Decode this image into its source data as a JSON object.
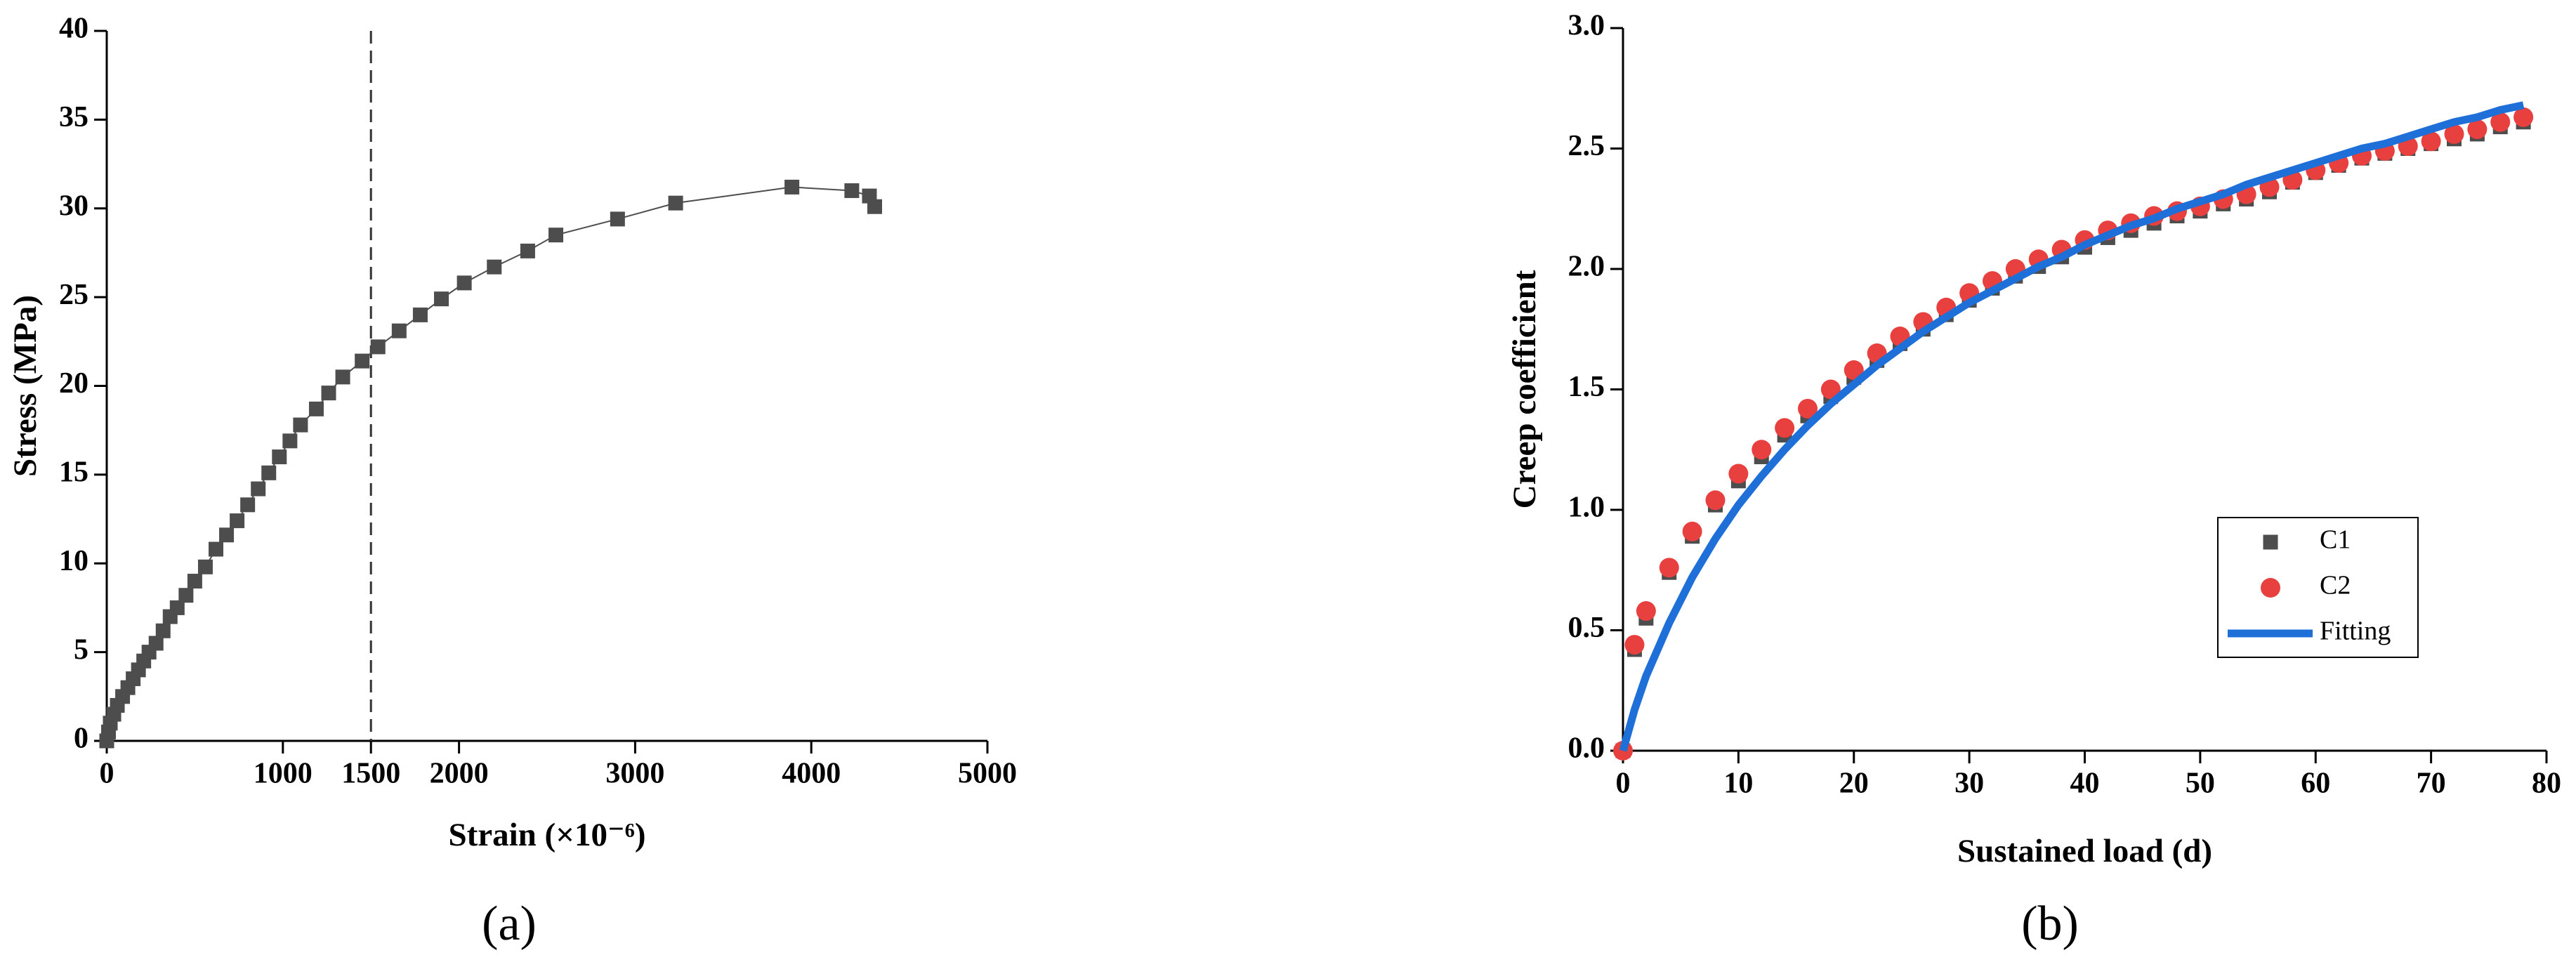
{
  "chart_data": [
    {
      "type": "line",
      "x": [
        0,
        10,
        20,
        40,
        60,
        90,
        120,
        150,
        180,
        210,
        240,
        280,
        320,
        360,
        400,
        450,
        500,
        560,
        620,
        680,
        740,
        800,
        860,
        920,
        980,
        1040,
        1100,
        1190,
        1260,
        1340,
        1450,
        1540,
        1660,
        1780,
        1900,
        2030,
        2200,
        2390,
        2550,
        2900,
        3230,
        3890,
        4230,
        4330,
        4360
      ],
      "series": [
        {
          "color": "#4d4d4d",
          "marker": "square",
          "values": [
            0,
            0.5,
            1,
            1.5,
            2,
            2.5,
            3,
            3.5,
            4,
            4.5,
            5,
            5.5,
            6.2,
            7,
            7.5,
            8.2,
            9,
            9.8,
            10.8,
            11.6,
            12.4,
            13.3,
            14.2,
            15.1,
            16,
            16.9,
            17.8,
            18.7,
            19.6,
            20.5,
            21.4,
            22.2,
            23.1,
            24,
            24.9,
            25.8,
            26.7,
            27.6,
            28.5,
            29.4,
            30.3,
            31.2,
            31,
            30.7,
            30.1
          ]
        }
      ],
      "xlim": [
        0,
        5000
      ],
      "ylim": [
        0,
        40
      ],
      "xticks": [
        0,
        1000,
        1500,
        2000,
        3000,
        4000,
        5000
      ],
      "yticks": [
        0,
        5,
        10,
        15,
        20,
        25,
        30,
        35,
        40
      ],
      "xlabel": "Strain (×10⁻⁶)",
      "ylabel": "Stress  (MPa)",
      "vline": 1500,
      "caption": "(a)"
    },
    {
      "type": "scatter",
      "x": [
        0,
        1,
        2,
        4,
        6,
        8,
        10,
        12,
        14,
        16,
        18,
        20,
        22,
        24,
        26,
        28,
        30,
        32,
        34,
        36,
        38,
        40,
        42,
        44,
        46,
        48,
        50,
        52,
        54,
        56,
        58,
        60,
        62,
        64,
        66,
        68,
        70,
        72,
        74,
        76,
        78
      ],
      "series": [
        {
          "name": "C1",
          "color": "#4d4d4d",
          "marker": "square",
          "values": [
            0,
            0.42,
            0.55,
            0.74,
            0.89,
            1.02,
            1.12,
            1.22,
            1.31,
            1.39,
            1.47,
            1.55,
            1.62,
            1.69,
            1.75,
            1.81,
            1.87,
            1.92,
            1.97,
            2.01,
            2.05,
            2.09,
            2.13,
            2.16,
            2.19,
            2.22,
            2.24,
            2.27,
            2.29,
            2.32,
            2.36,
            2.4,
            2.43,
            2.46,
            2.48,
            2.5,
            2.52,
            2.54,
            2.56,
            2.59,
            2.61
          ]
        },
        {
          "name": "C2",
          "color": "#e8403f",
          "marker": "circle",
          "values": [
            0,
            0.44,
            0.58,
            0.76,
            0.91,
            1.04,
            1.15,
            1.25,
            1.34,
            1.42,
            1.5,
            1.58,
            1.65,
            1.72,
            1.78,
            1.84,
            1.9,
            1.95,
            2,
            2.04,
            2.08,
            2.12,
            2.16,
            2.19,
            2.22,
            2.24,
            2.26,
            2.29,
            2.31,
            2.34,
            2.37,
            2.41,
            2.44,
            2.47,
            2.49,
            2.51,
            2.53,
            2.56,
            2.58,
            2.61,
            2.63
          ]
        },
        {
          "name": "Fitting",
          "color": "#1f6fd8",
          "type": "line",
          "values": [
            0,
            0.17,
            0.31,
            0.53,
            0.72,
            0.88,
            1.02,
            1.14,
            1.25,
            1.35,
            1.44,
            1.52,
            1.6,
            1.67,
            1.74,
            1.8,
            1.86,
            1.91,
            1.96,
            2.01,
            2.05,
            2.1,
            2.14,
            2.18,
            2.21,
            2.25,
            2.28,
            2.31,
            2.35,
            2.38,
            2.41,
            2.44,
            2.47,
            2.5,
            2.52,
            2.55,
            2.58,
            2.61,
            2.63,
            2.66,
            2.68
          ]
        }
      ],
      "xlim": [
        0,
        80
      ],
      "ylim": [
        0,
        3
      ],
      "xticks": [
        0,
        10,
        20,
        30,
        40,
        50,
        60,
        70,
        80
      ],
      "yticks": [
        {
          "value": 0,
          "label": "0.0"
        },
        0.5,
        {
          "value": 1,
          "label": "1.0"
        },
        1.5,
        {
          "value": 2,
          "label": "2.0"
        },
        2.5,
        {
          "value": 3,
          "label": "3.0"
        }
      ],
      "xlabel": "Sustained load (d)",
      "ylabel": "Creep coefficient",
      "legend": "lower right",
      "caption": "(b)"
    }
  ]
}
